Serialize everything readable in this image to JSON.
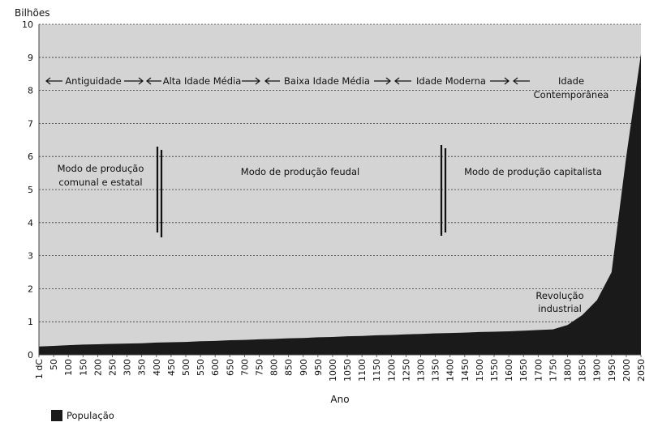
{
  "chart_data": {
    "type": "area",
    "ylabel": "Bilhões",
    "xlabel": "Ano",
    "ylim": [
      0,
      10
    ],
    "yticks": [
      "0",
      "1",
      "2",
      "3",
      "4",
      "5",
      "6",
      "7",
      "8",
      "9",
      "10"
    ],
    "grid": "horizontal dotted",
    "categories": [
      "1 dC",
      "50",
      "100",
      "150",
      "200",
      "250",
      "300",
      "350",
      "400",
      "450",
      "500",
      "550",
      "600",
      "650",
      "700",
      "750",
      "800",
      "850",
      "900",
      "950",
      "1000",
      "1050",
      "1100",
      "1150",
      "1200",
      "1250",
      "1300",
      "1350",
      "1400",
      "1450",
      "1500",
      "1550",
      "1600",
      "1650",
      "1700",
      "1750",
      "1800",
      "1850",
      "1900",
      "1950",
      "2000",
      "2050"
    ],
    "series": [
      {
        "name": "População",
        "color": "#1a1a1a",
        "values": [
          0.25,
          0.27,
          0.29,
          0.31,
          0.32,
          0.33,
          0.34,
          0.35,
          0.37,
          0.38,
          0.39,
          0.41,
          0.42,
          0.44,
          0.45,
          0.47,
          0.48,
          0.5,
          0.51,
          0.53,
          0.54,
          0.56,
          0.57,
          0.59,
          0.6,
          0.62,
          0.63,
          0.65,
          0.66,
          0.67,
          0.69,
          0.7,
          0.71,
          0.73,
          0.75,
          0.77,
          0.9,
          1.2,
          1.65,
          2.5,
          6.0,
          9.1
        ]
      }
    ],
    "annotations": {
      "periods": [
        "Antiguidade",
        "Alta Idade Média",
        "Baixa Idade Média",
        "Idade Moderna",
        "Idade Contemporânea"
      ],
      "modes": [
        "Modo de produção comunal e estatal",
        "Modo de produção feudal",
        "Modo de produção capitalista"
      ],
      "event": "Revolução industrial"
    },
    "legend": {
      "label": "População",
      "placement": "bottom-left"
    },
    "colors": {
      "plot_background": "#d4d4d4",
      "area": "#1a1a1a",
      "grid": "#333333"
    }
  }
}
